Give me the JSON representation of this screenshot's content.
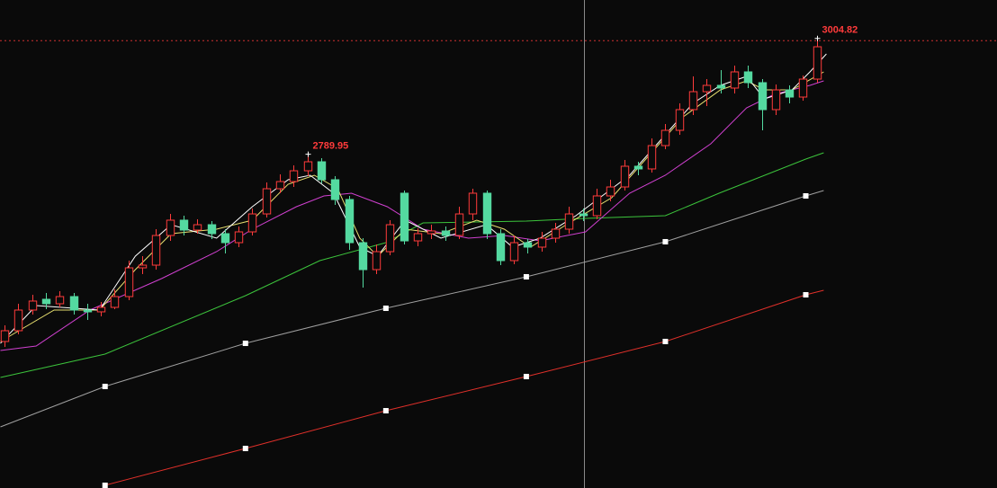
{
  "chart_data": {
    "type": "candlestick",
    "up_color": "#ff3b3b",
    "down_color": "#54d9a0",
    "xlim": [
      -0.33,
      72.09
    ],
    "ylim": [
      2171,
      3076
    ],
    "ohlc": [
      [
        2442.7,
        2472.7,
        2432.7,
        2462.7
      ],
      [
        2462.7,
        2512.7,
        2456.0,
        2501.0
      ],
      [
        2501.0,
        2529.3,
        2492.7,
        2517.7
      ],
      [
        2521.0,
        2532.7,
        2502.7,
        2512.7
      ],
      [
        2512.7,
        2536.0,
        2506.0,
        2526.0
      ],
      [
        2526.0,
        2532.7,
        2492.7,
        2501.0
      ],
      [
        2501.0,
        2512.7,
        2482.7,
        2497.7
      ],
      [
        2497.7,
        2516.0,
        2489.3,
        2506.0
      ],
      [
        2506.0,
        2539.3,
        2502.7,
        2526.0
      ],
      [
        2526.0,
        2592.7,
        2519.3,
        2579.3
      ],
      [
        2579.3,
        2601.0,
        2567.7,
        2584.3
      ],
      [
        2584.3,
        2651.0,
        2576.0,
        2639.3
      ],
      [
        2639.3,
        2679.3,
        2629.3,
        2667.7
      ],
      [
        2667.7,
        2676.0,
        2639.3,
        2649.3
      ],
      [
        2649.3,
        2669.3,
        2642.7,
        2659.3
      ],
      [
        2659.3,
        2666.0,
        2632.7,
        2642.7
      ],
      [
        2642.7,
        2651.0,
        2606.0,
        2626.0
      ],
      [
        2626.0,
        2656.0,
        2617.7,
        2646.0
      ],
      [
        2646.0,
        2689.3,
        2639.3,
        2679.3
      ],
      [
        2679.3,
        2737.7,
        2672.7,
        2726.0
      ],
      [
        2726.0,
        2752.7,
        2717.7,
        2739.3
      ],
      [
        2739.3,
        2769.3,
        2729.3,
        2759.3
      ],
      [
        2759.3,
        2789.95,
        2749.3,
        2776.0
      ],
      [
        2776.0,
        2782.7,
        2736.0,
        2742.7
      ],
      [
        2742.7,
        2749.3,
        2696.0,
        2706.0
      ],
      [
        2706.0,
        2712.7,
        2612.7,
        2626.0
      ],
      [
        2626.0,
        2634.3,
        2542.7,
        2576.0
      ],
      [
        2576.0,
        2622.7,
        2567.7,
        2609.3
      ],
      [
        2609.3,
        2667.7,
        2602.7,
        2659.3
      ],
      [
        2717.7,
        2722.7,
        2622.7,
        2629.3
      ],
      [
        2629.3,
        2652.7,
        2619.3,
        2642.7
      ],
      [
        2642.7,
        2659.3,
        2632.7,
        2647.7
      ],
      [
        2647.7,
        2656.0,
        2629.3,
        2639.3
      ],
      [
        2639.3,
        2692.7,
        2632.7,
        2679.3
      ],
      [
        2679.3,
        2726.0,
        2667.7,
        2717.7
      ],
      [
        2717.7,
        2722.7,
        2632.7,
        2642.7
      ],
      [
        2642.7,
        2651.0,
        2584.3,
        2592.7
      ],
      [
        2592.7,
        2639.3,
        2586.0,
        2626.0
      ],
      [
        2626.0,
        2632.7,
        2606.0,
        2617.7
      ],
      [
        2617.7,
        2646.0,
        2609.3,
        2634.3
      ],
      [
        2634.3,
        2662.7,
        2626.0,
        2651.0
      ],
      [
        2651.0,
        2692.7,
        2642.7,
        2679.3
      ],
      [
        2679.3,
        2689.3,
        2666.0,
        2676.0
      ],
      [
        2676.0,
        2726.0,
        2669.3,
        2712.7
      ],
      [
        2712.7,
        2742.7,
        2702.7,
        2729.3
      ],
      [
        2729.3,
        2779.3,
        2722.7,
        2767.7
      ],
      [
        2767.7,
        2776.0,
        2751.0,
        2762.7
      ],
      [
        2762.7,
        2819.3,
        2756.0,
        2806.0
      ],
      [
        2806.0,
        2846.0,
        2799.3,
        2834.3
      ],
      [
        2834.3,
        2884.3,
        2826.0,
        2872.7
      ],
      [
        2872.7,
        2934.3,
        2862.7,
        2906.0
      ],
      [
        2906.0,
        2929.3,
        2879.3,
        2917.7
      ],
      [
        2917.7,
        2946.0,
        2902.7,
        2912.7
      ],
      [
        2912.7,
        2954.3,
        2902.7,
        2942.7
      ],
      [
        2942.7,
        2954.3,
        2912.7,
        2922.7
      ],
      [
        2922.7,
        2929.3,
        2834.3,
        2872.7
      ],
      [
        2872.7,
        2919.3,
        2862.7,
        2909.3
      ],
      [
        2909.3,
        2917.7,
        2884.3,
        2896.0
      ],
      [
        2896.0,
        2936.0,
        2889.3,
        2929.3
      ],
      [
        2929.3,
        3004.82,
        2922.7,
        2989.3
      ]
    ],
    "value_labels": [
      null,
      null,
      null,
      null,
      null,
      null,
      null,
      null,
      null,
      null,
      null,
      null,
      null,
      null,
      null,
      null,
      null,
      null,
      null,
      null,
      null,
      null,
      "2789.95",
      null,
      null,
      null,
      null,
      null,
      null,
      null,
      null,
      null,
      null,
      null,
      null,
      null,
      null,
      null,
      null,
      null,
      null,
      null,
      null,
      null,
      null,
      null,
      null,
      null,
      null,
      null,
      null,
      null,
      null,
      null,
      null,
      null,
      null,
      null,
      null,
      "3004.82"
    ],
    "series": [
      {
        "color": "#e0302a",
        "markers": true,
        "x": [
          7.3,
          17.5,
          27.7,
          37.9,
          48.0,
          58.2,
          59.5
        ],
        "values": [
          2176.0,
          2244.3,
          2314.3,
          2377.7,
          2442.7,
          2529.3,
          2537.7
        ]
      },
      {
        "color": "#a0a0a0",
        "markers": true,
        "x": [
          -0.3,
          7.3,
          17.5,
          27.7,
          37.9,
          48.0,
          58.2,
          59.5
        ],
        "values": [
          2284.3,
          2359.3,
          2439.3,
          2504.3,
          2562.7,
          2627.7,
          2712.7,
          2722.7
        ]
      },
      {
        "color": "#3cc43c",
        "markers": false,
        "x": [
          -0.3,
          7.3,
          17.5,
          22.9,
          27.7,
          30.4,
          37.9,
          42.2,
          48.0,
          51.9,
          58.2,
          59.5
        ],
        "values": [
          2376.0,
          2419.3,
          2527.7,
          2592.7,
          2626.0,
          2662.7,
          2666.0,
          2671.0,
          2676.0,
          2717.7,
          2781.0,
          2792.7
        ]
      },
      {
        "color": "#d040d0",
        "markers": false,
        "x": [
          -0.3,
          2.3,
          6.2,
          11.4,
          15.4,
          18.0,
          21.2,
          23.2,
          25.2,
          27.8,
          30.4,
          33.7,
          36.3,
          38.9,
          42.2,
          45.4,
          48.0,
          51.3,
          53.9,
          55.9,
          58.5,
          59.5
        ],
        "values": [
          2426.0,
          2434.3,
          2501.0,
          2559.3,
          2609.3,
          2651.0,
          2692.7,
          2712.7,
          2717.7,
          2692.7,
          2651.0,
          2634.3,
          2639.3,
          2629.3,
          2646.0,
          2717.7,
          2751.0,
          2809.3,
          2876.0,
          2901.0,
          2917.7,
          2926.0
        ]
      },
      {
        "color": "#e8e070",
        "markers": false,
        "x": [
          -0.3,
          3.6,
          6.9,
          9.5,
          12.1,
          15.4,
          18.0,
          20.6,
          22.5,
          24.2,
          25.8,
          27.1,
          29.1,
          31.7,
          34.3,
          36.3,
          38.2,
          40.8,
          44.1,
          46.7,
          49.3,
          52.0,
          53.9,
          55.2,
          57.2,
          59.5
        ],
        "values": [
          2442.7,
          2501.0,
          2501.0,
          2576.0,
          2642.7,
          2651.0,
          2667.7,
          2734.3,
          2751.0,
          2726.0,
          2634.3,
          2601.0,
          2651.0,
          2642.7,
          2667.7,
          2651.0,
          2617.7,
          2659.3,
          2709.3,
          2784.3,
          2859.3,
          2909.3,
          2926.0,
          2909.3,
          2909.3,
          2942.7
        ]
      },
      {
        "color": "#ffffff",
        "markers": false,
        "x": [
          -0.3,
          2.3,
          6.9,
          9.5,
          12.1,
          15.4,
          18.0,
          20.6,
          22.2,
          23.9,
          25.8,
          27.1,
          29.1,
          31.7,
          35.0,
          36.9,
          38.9,
          41.5,
          45.4,
          48.0,
          50.0,
          52.0,
          53.9,
          55.2,
          57.2,
          58.5,
          59.7
        ],
        "values": [
          2439.3,
          2509.3,
          2501.0,
          2601.0,
          2659.3,
          2634.3,
          2692.7,
          2742.7,
          2751.0,
          2717.7,
          2617.7,
          2601.0,
          2667.7,
          2634.3,
          2659.3,
          2617.7,
          2634.3,
          2676.0,
          2751.0,
          2826.0,
          2884.3,
          2917.7,
          2934.3,
          2892.7,
          2909.3,
          2942.7,
          2976.0
        ]
      }
    ]
  }
}
